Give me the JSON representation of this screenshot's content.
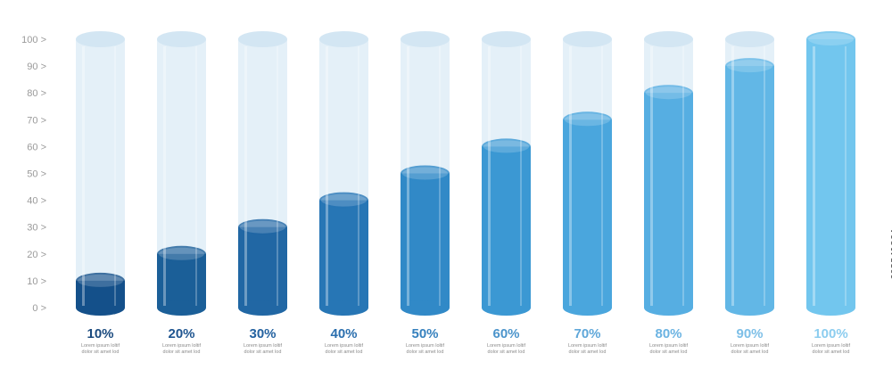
{
  "chart_data": {
    "type": "bar",
    "categories": [
      "10%",
      "20%",
      "30%",
      "40%",
      "50%",
      "60%",
      "70%",
      "80%",
      "90%",
      "100%"
    ],
    "values": [
      10,
      20,
      30,
      40,
      50,
      60,
      70,
      80,
      90,
      100
    ],
    "ylim": [
      0,
      100
    ],
    "yticks": [
      {
        "value": 0,
        "label": "0 >"
      },
      {
        "value": 10,
        "label": "10 >"
      },
      {
        "value": 20,
        "label": "20 >"
      },
      {
        "value": 30,
        "label": "30 >"
      },
      {
        "value": 40,
        "label": "40 >"
      },
      {
        "value": 50,
        "label": "50 >"
      },
      {
        "value": 60,
        "label": "60 >"
      },
      {
        "value": 70,
        "label": "70 >"
      },
      {
        "value": 80,
        "label": "80 >"
      },
      {
        "value": 90,
        "label": "90 >"
      },
      {
        "value": 100,
        "label": "100 >"
      }
    ],
    "bar_colors": [
      "#14508a",
      "#1b5f98",
      "#2167a4",
      "#2776b5",
      "#3189c7",
      "#3b98d3",
      "#4aa6dd",
      "#56aee2",
      "#62b7e6",
      "#72c6ee"
    ],
    "label_colors": [
      "#1a4a7e",
      "#1f5590",
      "#2462a0",
      "#2b6fae",
      "#3681be",
      "#4b94cb",
      "#5fa7d9",
      "#6bb3e2",
      "#7dbfe7",
      "#8ccdef"
    ],
    "caption_line1": "Lorem ipsum loltif",
    "caption_line2": "dolor sit amet lod",
    "grid": false,
    "legend": "none"
  },
  "side_text": "603541864"
}
